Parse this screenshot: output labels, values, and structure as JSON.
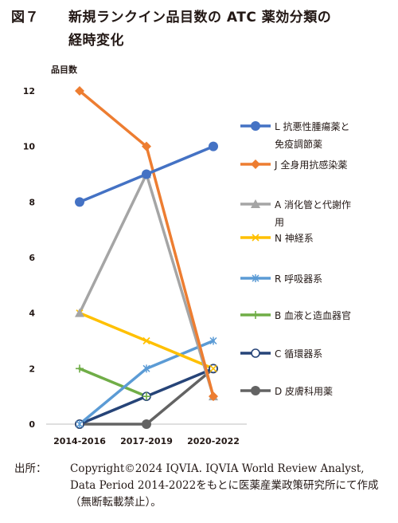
{
  "title": {
    "number": "図７",
    "line1": "新規ランクイン品目数の ATC 薬効分類の",
    "line2": "経時変化"
  },
  "footer": {
    "label": "出所：",
    "text": "Copyright©2024 IQVIA. IQVIA World Review Analyst, Data Period 2014-2022をもとに医薬産業政策研究所にて作成（無断転載禁止）。"
  },
  "chart_data": {
    "type": "line",
    "ylabel": "品目数",
    "categories": [
      "2014-2016",
      "2017-2019",
      "2020-2022"
    ],
    "ylim": [
      0,
      12
    ],
    "yticks": [
      0,
      2,
      4,
      6,
      8,
      10,
      12
    ],
    "grid": false,
    "legend": "right",
    "series": [
      {
        "name": "L 抗悪性腫瘍薬と免疫調節薬",
        "label_lines": [
          "L 抗悪性腫瘍薬と",
          "免疫調節薬"
        ],
        "values": [
          8,
          9,
          10
        ],
        "color": "#4472c4",
        "marker": "circle"
      },
      {
        "name": "J 全身用抗感染薬",
        "label_lines": [
          "J 全身用抗感染薬"
        ],
        "values": [
          12,
          10,
          1
        ],
        "color": "#ed7d31",
        "marker": "diamond"
      },
      {
        "name": "A 消化管と代謝作用",
        "label_lines": [
          "A 消化管と代謝作",
          "用"
        ],
        "values": [
          4,
          9,
          1
        ],
        "color": "#a5a5a5",
        "marker": "triangle"
      },
      {
        "name": "N 神経系",
        "label_lines": [
          "N 神経系"
        ],
        "values": [
          4,
          3,
          2
        ],
        "color": "#ffc000",
        "marker": "x"
      },
      {
        "name": "R 呼吸器系",
        "label_lines": [
          "R 呼吸器系"
        ],
        "values": [
          0,
          2,
          3
        ],
        "color": "#5b9bd5",
        "marker": "star"
      },
      {
        "name": "B 血液と造血器官",
        "label_lines": [
          "B 血液と造血器官"
        ],
        "values": [
          2,
          1,
          null
        ],
        "color": "#70ad47",
        "marker": "plus"
      },
      {
        "name": "C 循環器系",
        "label_lines": [
          "C 循環器系"
        ],
        "values": [
          0,
          1,
          2
        ],
        "color": "#264478",
        "marker": "open-circle"
      },
      {
        "name": "D 皮膚科用薬",
        "label_lines": [
          "D 皮膚科用薬"
        ],
        "values": [
          0,
          0,
          2
        ],
        "color": "#636363",
        "marker": "circle"
      }
    ]
  }
}
